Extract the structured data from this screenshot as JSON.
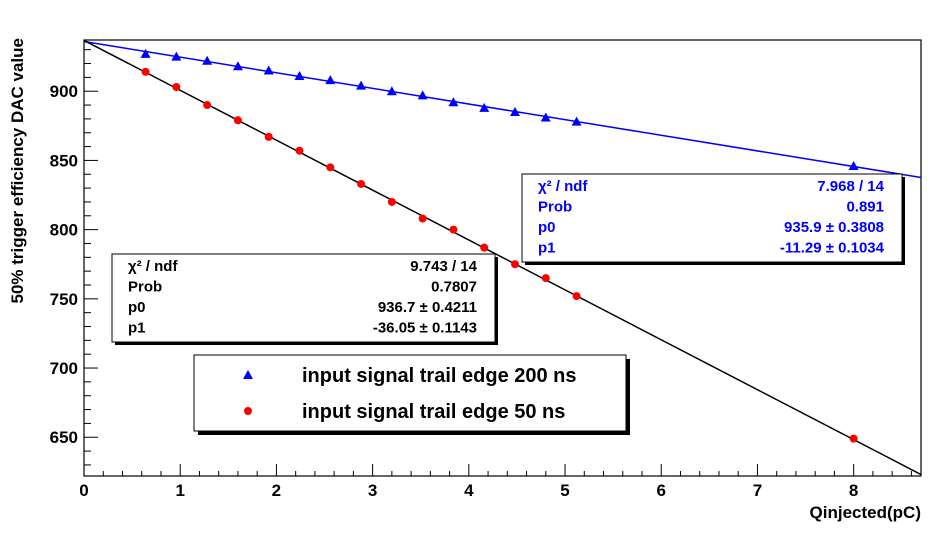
{
  "chart_data": {
    "type": "scatter",
    "title": "",
    "xlabel": "Qinjected(pC)",
    "ylabel": "50% trigger efficiency DAC value",
    "xlim": [
      0,
      8.7
    ],
    "ylim": [
      622,
      937
    ],
    "x_ticks": [
      0,
      1,
      2,
      3,
      4,
      5,
      6,
      7,
      8
    ],
    "x_tick_labels": [
      "0",
      "1",
      "2",
      "3",
      "4",
      "5",
      "6",
      "7",
      "8"
    ],
    "y_ticks": [
      650,
      700,
      750,
      800,
      850,
      900
    ],
    "y_tick_labels": [
      "650",
      "700",
      "750",
      "800",
      "850",
      "900"
    ],
    "grid": false,
    "legend_position": "lower-center",
    "series": [
      {
        "name": "input signal trail edge 200 ns",
        "marker": "triangle",
        "color": "#0000ff",
        "x": [
          0.64,
          0.96,
          1.28,
          1.6,
          1.92,
          2.24,
          2.56,
          2.88,
          3.2,
          3.52,
          3.84,
          4.16,
          4.48,
          4.8,
          5.12,
          8.0
        ],
        "y": [
          927,
          925,
          922,
          918,
          915,
          911,
          908,
          904,
          900,
          897,
          892,
          888,
          885,
          881,
          878,
          846
        ],
        "fit": {
          "p0": 935.9,
          "p1": -11.29
        }
      },
      {
        "name": "input signal trail edge 50 ns",
        "marker": "circle",
        "color": "#ff0000",
        "x": [
          0.64,
          0.96,
          1.28,
          1.6,
          1.92,
          2.24,
          2.56,
          2.88,
          3.2,
          3.52,
          3.84,
          4.16,
          4.48,
          4.8,
          5.12,
          8.0
        ],
        "y": [
          914,
          903,
          890,
          879,
          867,
          857,
          845,
          833,
          820,
          808,
          800,
          787,
          775,
          765,
          752,
          649
        ],
        "fit": {
          "p0": 936.7,
          "p1": -36.05
        }
      }
    ],
    "stats_boxes": [
      {
        "color": "#0000ff",
        "rows": [
          {
            "label": "χ² / ndf",
            "value": "7.968 / 14"
          },
          {
            "label": "Prob",
            "value": "0.891"
          },
          {
            "label": "p0",
            "value": "935.9 ± 0.3808"
          },
          {
            "label": "p1",
            "value": "-11.29 ± 0.1034"
          }
        ]
      },
      {
        "color": "#000000",
        "rows": [
          {
            "label": "χ² / ndf",
            "value": "9.743 / 14"
          },
          {
            "label": "Prob",
            "value": "0.7807"
          },
          {
            "label": "p0",
            "value": "936.7 ± 0.4211"
          },
          {
            "label": "p1",
            "value": "-36.05 ± 0.1143"
          }
        ]
      }
    ]
  }
}
